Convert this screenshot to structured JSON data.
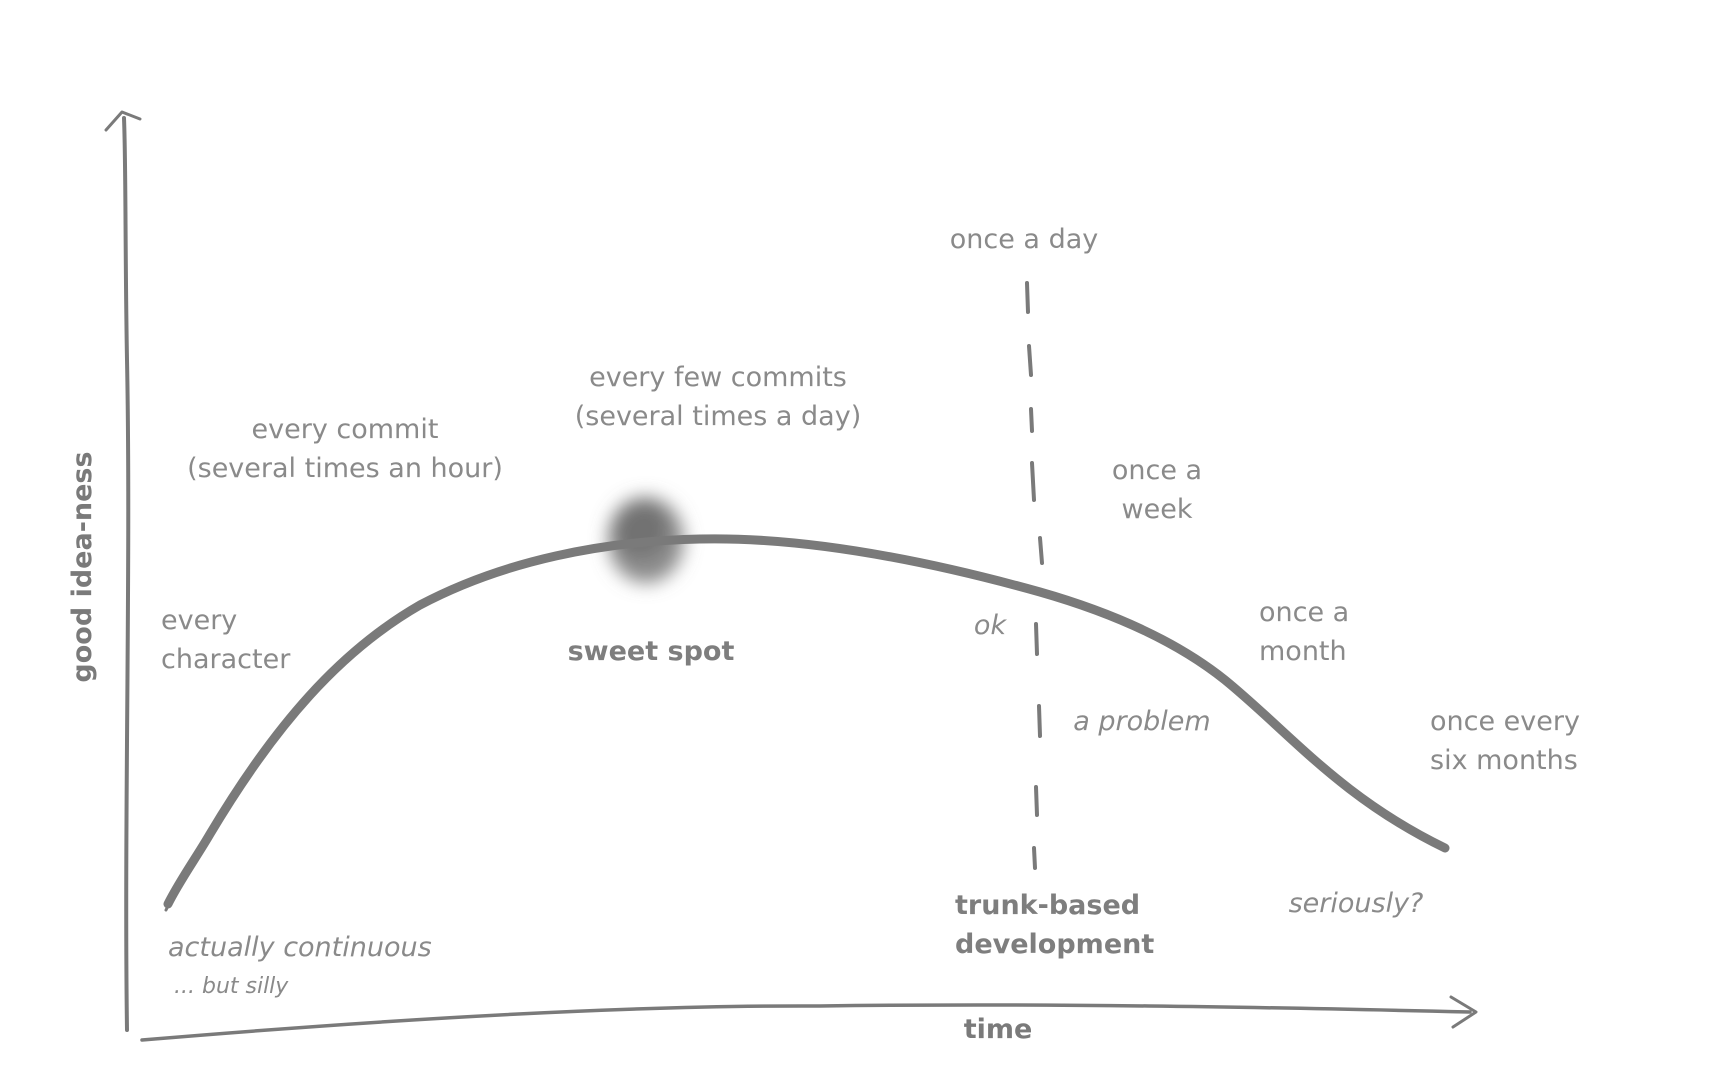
{
  "axes": {
    "y_title": "good idea-ness",
    "x_title": "time"
  },
  "curve_labels": {
    "every_character": [
      "every",
      "character"
    ],
    "every_commit": [
      "every commit",
      "(several times an hour)"
    ],
    "every_few_commits": [
      "every few commits",
      "(several times a day)"
    ],
    "once_a_day": "once a day",
    "once_a_week": [
      "once a",
      "week"
    ],
    "once_a_month": [
      "once a",
      "month"
    ],
    "once_every_six_months": [
      "once every",
      "six months"
    ]
  },
  "annotations": {
    "sweet_spot": "sweet spot",
    "ok": "ok",
    "a_problem": "a problem",
    "seriously": "seriously?",
    "trunk_based": [
      "trunk-based",
      "development"
    ],
    "actually_continuous": "actually continuous",
    "but_silly": "... but silly"
  },
  "colors": {
    "ink": "#7a7a7a",
    "text": "#8a8a8a",
    "blob": "#6e6e6e",
    "background": "#ffffff"
  }
}
